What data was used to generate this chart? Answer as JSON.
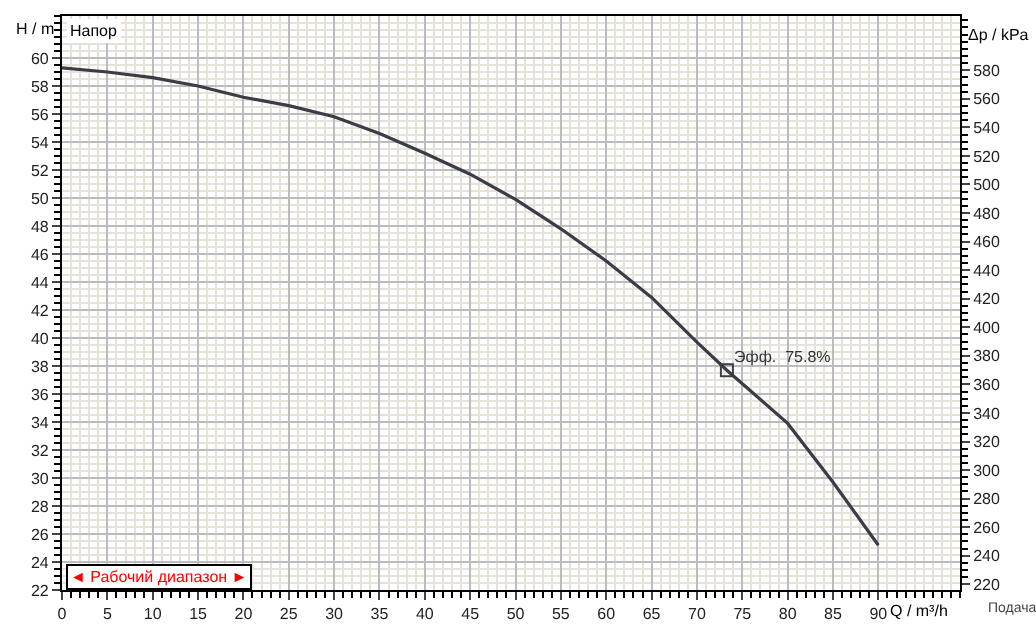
{
  "chart_data": {
    "type": "line",
    "title": "Напор",
    "ylabel": "H / m",
    "y2label": "Δp / kPa",
    "xlabel": "Q / m³/h",
    "annotations": [
      "Подача",
      "◄ Рабочий диапазон ►",
      {
        "text": "Эфф.  75.8%",
        "x": 73.3,
        "y": 37.7
      }
    ],
    "x": [
      0,
      5,
      10,
      15,
      20,
      25,
      30,
      35,
      40,
      45,
      50,
      55,
      60,
      65,
      70,
      73.3,
      80,
      85,
      90
    ],
    "series": [
      {
        "color": "#3c3c46",
        "values": [
          59.3,
          59.0,
          58.6,
          58.0,
          57.2,
          56.6,
          55.8,
          54.6,
          53.2,
          51.7,
          49.9,
          47.8,
          45.5,
          42.9,
          39.7,
          37.7,
          33.9,
          29.7,
          25.2
        ]
      },
      {
        "type": "scatter",
        "marker": "square",
        "color": "#3c3c46",
        "x": [
          73.3
        ],
        "values": [
          37.7
        ]
      }
    ],
    "xlim": [
      0,
      99
    ],
    "xticks": [
      0,
      5,
      10,
      15,
      20,
      25,
      30,
      35,
      40,
      45,
      50,
      55,
      60,
      65,
      70,
      75,
      80,
      85,
      90
    ],
    "ylim": [
      22,
      63
    ],
    "yticks": [
      22,
      24,
      26,
      28,
      30,
      32,
      34,
      36,
      38,
      40,
      42,
      44,
      46,
      48,
      50,
      52,
      54,
      56,
      58,
      60
    ],
    "y2lim": [
      216,
      618
    ],
    "y2ticks": [
      220,
      240,
      260,
      280,
      300,
      320,
      340,
      360,
      380,
      400,
      420,
      440,
      460,
      480,
      500,
      520,
      540,
      560,
      580
    ],
    "grid": true,
    "legend": false,
    "marker": "none",
    "line_style": "solid"
  }
}
